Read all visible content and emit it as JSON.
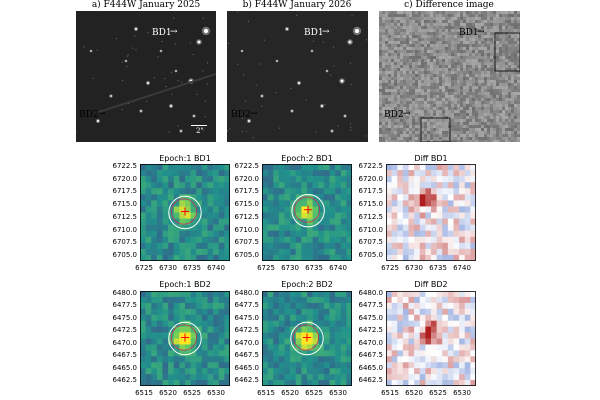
{
  "top": {
    "titles": [
      "a) F444W January 2025",
      "b) F444W January 2026",
      "c) Difference image"
    ],
    "labels": {
      "bd1": "BD1",
      "bd2": "BD2"
    },
    "scale_bar": "2\""
  },
  "cutouts": {
    "row1": {
      "titles": [
        "Epoch:1 BD1",
        "Epoch:2 BD1",
        "Diff BD1"
      ],
      "yticks": [
        "6722.5",
        "6720.0",
        "6717.5",
        "6715.0",
        "6712.5",
        "6710.0",
        "6707.5",
        "6705.0"
      ],
      "xticks": [
        "6725",
        "6730",
        "6735",
        "6740"
      ]
    },
    "row2": {
      "titles": [
        "Epoch:1 BD2",
        "Epoch:2 BD2",
        "Diff BD2"
      ],
      "yticks": [
        "6480.0",
        "6477.5",
        "6475.0",
        "6472.5",
        "6470.0",
        "6467.5",
        "6465.0",
        "6462.5"
      ],
      "xticks": [
        "6515",
        "6520",
        "6525",
        "6530"
      ]
    }
  },
  "colors": {
    "cross": "#ff0000",
    "circle_outer": "#ffffff",
    "circle_inner": "#c83060",
    "cmap_low": "#3b2f7d",
    "cmap_high": "#fde725",
    "diff_neg": "#3060a8",
    "diff_pos": "#b02020"
  }
}
